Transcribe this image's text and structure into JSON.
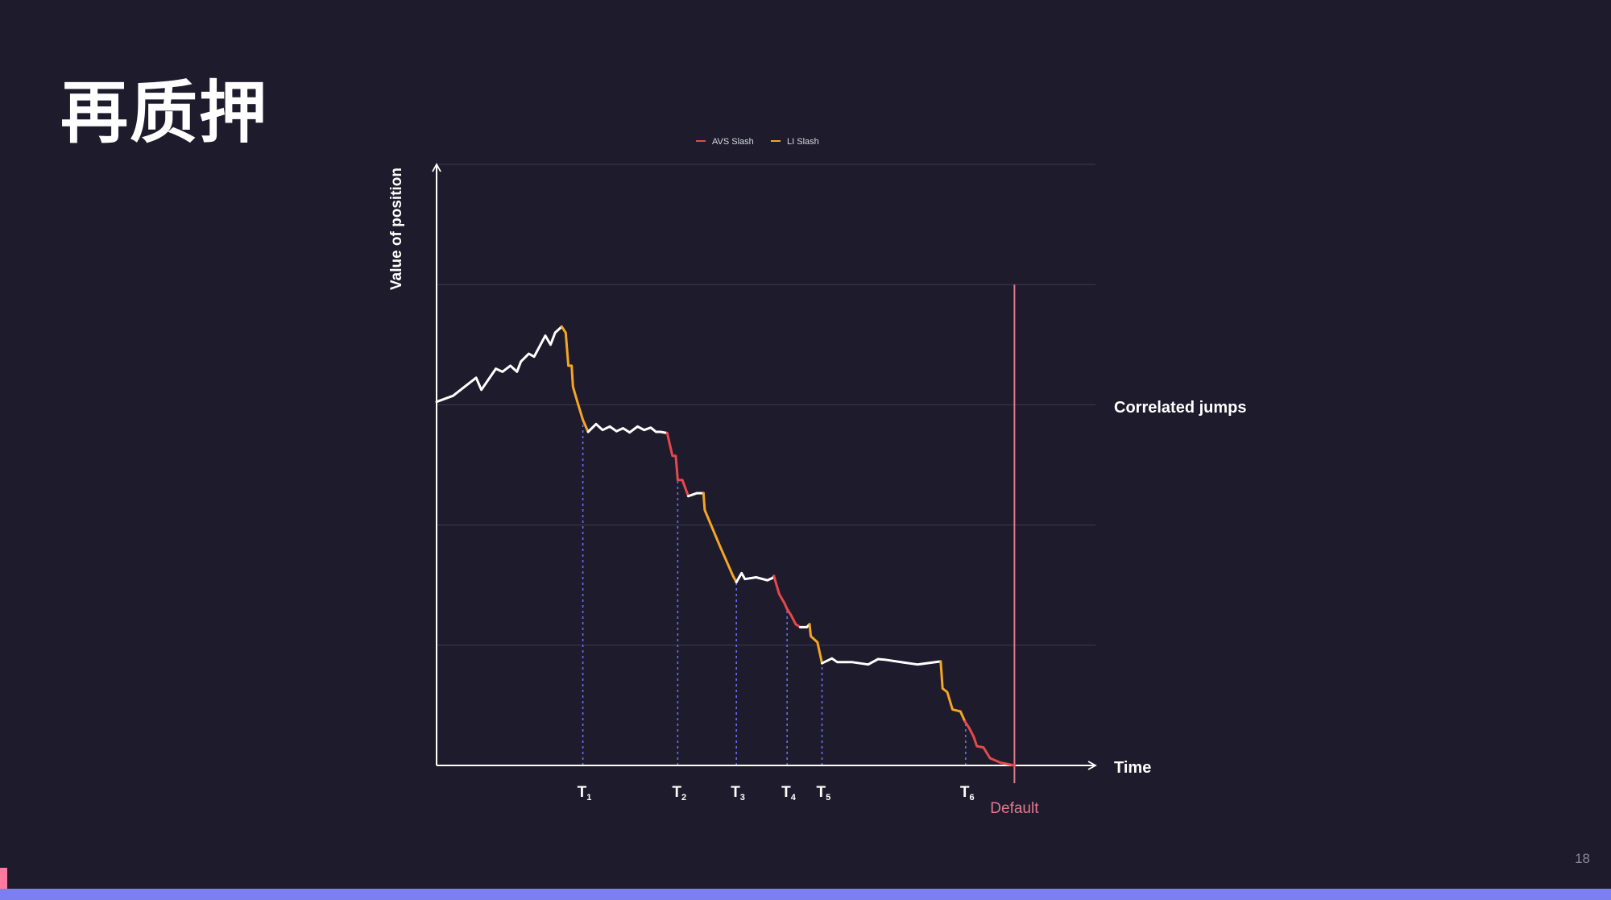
{
  "slide": {
    "title": "再质押",
    "page_number": "18"
  },
  "colors": {
    "background": "#1e1c2c",
    "footer_bar": "#7b7ff0",
    "footer_accent": "#ff7aa0",
    "grid": "#3b394c",
    "axis": "#ffffff",
    "value_line": "#ffffff",
    "avs_slash": "#e5484d",
    "lst_slash": "#f5a524",
    "event_line": "#6c6ef0",
    "default_line": "#e2788e"
  },
  "chart_data": {
    "type": "line",
    "title": "",
    "xlabel": "Time",
    "ylabel": "Value of position",
    "legend": {
      "placement": "top-center",
      "entries": [
        {
          "name": "AVS Slash",
          "color": "#e5484d"
        },
        {
          "name": "LI Slash",
          "color": "#f5a524"
        }
      ]
    },
    "annotations": {
      "correlated_jumps": "Correlated jumps",
      "default_label": "Default"
    },
    "xlim": [
      0,
      100
    ],
    "ylim": [
      0,
      100
    ],
    "grid": {
      "horizontal": true,
      "vertical": false
    },
    "horizontal_gridlines": [
      20,
      40,
      60,
      80,
      100
    ],
    "events": [
      {
        "main": "T",
        "sub": "1",
        "x": 22.2
      },
      {
        "main": "T",
        "sub": "2",
        "x": 36.6
      },
      {
        "main": "T",
        "sub": "3",
        "x": 45.5
      },
      {
        "main": "T",
        "sub": "4",
        "x": 53.2
      },
      {
        "main": "T",
        "sub": "5",
        "x": 58.5
      },
      {
        "main": "T",
        "sub": "6",
        "x": 80.3
      }
    ],
    "default_x": 87.7,
    "series": [
      {
        "name": "",
        "kind": "normal",
        "points": [
          [
            0,
            60.5
          ],
          [
            2.5,
            61.5
          ],
          [
            6,
            64.5
          ],
          [
            6.8,
            62.5
          ],
          [
            9,
            66
          ],
          [
            10,
            65.5
          ],
          [
            11.2,
            66.5
          ],
          [
            12.2,
            65.5
          ],
          [
            12.8,
            67.2
          ],
          [
            14,
            68.5
          ],
          [
            14.8,
            68
          ],
          [
            16.5,
            71.5
          ],
          [
            17.3,
            70
          ],
          [
            18,
            72
          ],
          [
            19,
            73
          ]
        ]
      },
      {
        "name": "LI Slash",
        "kind": "lst",
        "points": [
          [
            19,
            73
          ],
          [
            19.6,
            72
          ],
          [
            20,
            66.5
          ],
          [
            20.5,
            66.5
          ],
          [
            20.7,
            63
          ],
          [
            21.5,
            60
          ],
          [
            22.2,
            57.5
          ],
          [
            23,
            55.5
          ]
        ]
      },
      {
        "name": "",
        "kind": "normal",
        "points": [
          [
            23,
            55.5
          ],
          [
            24.2,
            56.8
          ],
          [
            25.2,
            55.8
          ],
          [
            26.3,
            56.4
          ],
          [
            27.3,
            55.6
          ],
          [
            28.3,
            56.1
          ],
          [
            29.3,
            55.4
          ],
          [
            30.5,
            56.4
          ],
          [
            31.5,
            55.8
          ],
          [
            32.5,
            56.2
          ],
          [
            33.3,
            55.5
          ],
          [
            34,
            55.5
          ],
          [
            35,
            55.3
          ]
        ]
      },
      {
        "name": "AVS Slash",
        "kind": "avs",
        "points": [
          [
            35,
            55.3
          ],
          [
            35.8,
            51.5
          ],
          [
            36.3,
            51.5
          ],
          [
            36.6,
            47.5
          ],
          [
            37.3,
            47.5
          ],
          [
            38.2,
            44.8
          ]
        ]
      },
      {
        "name": "",
        "kind": "normal",
        "points": [
          [
            38.2,
            44.8
          ],
          [
            39.5,
            45.3
          ],
          [
            40.5,
            45.3
          ]
        ]
      },
      {
        "name": "LI Slash",
        "kind": "lst",
        "points": [
          [
            40.5,
            45.3
          ],
          [
            40.7,
            42.5
          ],
          [
            43,
            36.5
          ],
          [
            45,
            31.5
          ],
          [
            45.5,
            30.5
          ]
        ]
      },
      {
        "name": "",
        "kind": "normal",
        "points": [
          [
            45.5,
            30.5
          ],
          [
            46.3,
            32
          ],
          [
            46.8,
            31
          ],
          [
            48.5,
            31.3
          ],
          [
            50.2,
            30.8
          ],
          [
            51,
            31.2
          ],
          [
            51.2,
            31.5
          ]
        ]
      },
      {
        "name": "AVS Slash",
        "kind": "avs",
        "points": [
          [
            51.2,
            31.5
          ],
          [
            52,
            28.5
          ],
          [
            52.8,
            27
          ],
          [
            53.2,
            26
          ],
          [
            53.8,
            25
          ],
          [
            54.5,
            23.5
          ],
          [
            55.2,
            23
          ]
        ]
      },
      {
        "name": "",
        "kind": "normal",
        "points": [
          [
            55.2,
            23
          ],
          [
            56.2,
            23
          ],
          [
            56.6,
            23.5
          ]
        ]
      },
      {
        "name": "LI Slash",
        "kind": "lst",
        "points": [
          [
            56.6,
            23.5
          ],
          [
            56.8,
            21.5
          ],
          [
            57.8,
            20.5
          ],
          [
            58.5,
            17
          ]
        ]
      },
      {
        "name": "",
        "kind": "normal",
        "points": [
          [
            58.5,
            17
          ],
          [
            60,
            17.8
          ],
          [
            60.8,
            17.2
          ],
          [
            63,
            17.2
          ],
          [
            65.5,
            16.8
          ],
          [
            67,
            17.7
          ],
          [
            68,
            17.6
          ],
          [
            71,
            17.1
          ],
          [
            73,
            16.8
          ],
          [
            76.5,
            17.3
          ]
        ]
      },
      {
        "name": "LI Slash",
        "kind": "lst",
        "points": [
          [
            76.5,
            17.3
          ],
          [
            76.8,
            12.8
          ],
          [
            77.5,
            12.2
          ],
          [
            78.3,
            9.3
          ],
          [
            79.5,
            9.0
          ],
          [
            80.2,
            7.3
          ]
        ]
      },
      {
        "name": "AVS Slash",
        "kind": "avs",
        "points": [
          [
            80.2,
            7.3
          ],
          [
            80.8,
            6.3
          ],
          [
            81.5,
            4.8
          ],
          [
            82,
            3.2
          ],
          [
            83,
            3.0
          ],
          [
            84,
            1.2
          ],
          [
            85.5,
            0.5
          ],
          [
            87.7,
            0
          ]
        ]
      }
    ]
  }
}
